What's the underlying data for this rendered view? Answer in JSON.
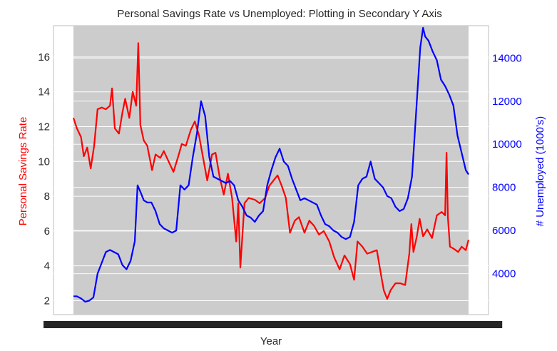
{
  "chart_data": {
    "type": "line",
    "title": "Personal Savings Rate vs Unemployed: Plotting in Secondary Y Axis",
    "xlabel": "Year",
    "xrange": [
      "1967-07",
      "2015-04"
    ],
    "x_tick_labels_unreadable": true,
    "ylabel": "Personal Savings Rate",
    "ylabel_right": "# Unemployed (1000's)",
    "ylim": [
      1.2,
      17.8
    ],
    "ylim_right": [
      2100,
      15500
    ],
    "yticks": [
      2,
      4,
      6,
      8,
      10,
      12,
      14,
      16
    ],
    "yticks_right": [
      4000,
      6000,
      8000,
      10000,
      12000,
      14000
    ],
    "grid": true,
    "background": "#cccccc",
    "series": [
      {
        "name": "Personal Savings Rate",
        "axis": "left",
        "color": "#ff0000",
        "points": [
          [
            "1967-07",
            12.5
          ],
          [
            "1967-12",
            11.9
          ],
          [
            "1968-06",
            11.4
          ],
          [
            "1968-10",
            10.3
          ],
          [
            "1969-03",
            10.8
          ],
          [
            "1969-08",
            9.6
          ],
          [
            "1970-01",
            10.9
          ],
          [
            "1970-06",
            13.0
          ],
          [
            "1970-12",
            13.1
          ],
          [
            "1971-06",
            13.0
          ],
          [
            "1971-12",
            13.2
          ],
          [
            "1972-03",
            14.2
          ],
          [
            "1972-07",
            11.9
          ],
          [
            "1973-01",
            11.6
          ],
          [
            "1973-06",
            12.8
          ],
          [
            "1973-10",
            13.6
          ],
          [
            "1974-04",
            12.5
          ],
          [
            "1974-09",
            14.0
          ],
          [
            "1975-02",
            13.2
          ],
          [
            "1975-05",
            16.8
          ],
          [
            "1975-08",
            12.1
          ],
          [
            "1976-01",
            11.2
          ],
          [
            "1976-06",
            10.9
          ],
          [
            "1977-01",
            9.5
          ],
          [
            "1977-06",
            10.4
          ],
          [
            "1978-01",
            10.2
          ],
          [
            "1978-06",
            10.6
          ],
          [
            "1979-01",
            10.0
          ],
          [
            "1979-08",
            9.4
          ],
          [
            "1980-03",
            10.3
          ],
          [
            "1980-08",
            11.0
          ],
          [
            "1981-02",
            10.9
          ],
          [
            "1981-09",
            11.8
          ],
          [
            "1982-03",
            12.3
          ],
          [
            "1982-09",
            11.5
          ],
          [
            "1983-03",
            10.2
          ],
          [
            "1983-09",
            8.9
          ],
          [
            "1984-04",
            10.4
          ],
          [
            "1984-09",
            10.5
          ],
          [
            "1985-03",
            9.1
          ],
          [
            "1985-09",
            8.1
          ],
          [
            "1986-03",
            9.3
          ],
          [
            "1986-09",
            7.9
          ],
          [
            "1987-03",
            5.4
          ],
          [
            "1987-06",
            7.6
          ],
          [
            "1987-09",
            3.9
          ],
          [
            "1988-03",
            7.6
          ],
          [
            "1988-09",
            7.9
          ],
          [
            "1989-06",
            7.8
          ],
          [
            "1990-01",
            7.6
          ],
          [
            "1990-09",
            7.9
          ],
          [
            "1991-03",
            8.6
          ],
          [
            "1991-09",
            8.9
          ],
          [
            "1992-03",
            9.2
          ],
          [
            "1992-09",
            8.6
          ],
          [
            "1993-03",
            7.9
          ],
          [
            "1993-09",
            5.9
          ],
          [
            "1994-04",
            6.6
          ],
          [
            "1994-10",
            6.8
          ],
          [
            "1995-06",
            5.9
          ],
          [
            "1996-01",
            6.6
          ],
          [
            "1996-08",
            6.3
          ],
          [
            "1997-03",
            5.8
          ],
          [
            "1997-10",
            6.0
          ],
          [
            "1998-06",
            5.4
          ],
          [
            "1999-01",
            4.5
          ],
          [
            "1999-09",
            3.8
          ],
          [
            "2000-04",
            4.6
          ],
          [
            "2000-12",
            4.1
          ],
          [
            "2001-06",
            3.2
          ],
          [
            "2001-11",
            5.4
          ],
          [
            "2002-06",
            5.1
          ],
          [
            "2003-01",
            4.7
          ],
          [
            "2003-08",
            4.8
          ],
          [
            "2004-03",
            4.9
          ],
          [
            "2004-09",
            3.5
          ],
          [
            "2005-01",
            2.6
          ],
          [
            "2005-06",
            2.1
          ],
          [
            "2005-11",
            2.6
          ],
          [
            "2006-06",
            3.0
          ],
          [
            "2007-01",
            3.0
          ],
          [
            "2007-08",
            2.9
          ],
          [
            "2008-02",
            4.7
          ],
          [
            "2008-05",
            6.4
          ],
          [
            "2008-08",
            4.8
          ],
          [
            "2009-01",
            5.7
          ],
          [
            "2009-05",
            6.7
          ],
          [
            "2009-10",
            5.7
          ],
          [
            "2010-04",
            6.1
          ],
          [
            "2010-11",
            5.6
          ],
          [
            "2011-06",
            6.9
          ],
          [
            "2012-01",
            7.1
          ],
          [
            "2012-06",
            6.9
          ],
          [
            "2012-08",
            10.5
          ],
          [
            "2012-10",
            6.8
          ],
          [
            "2013-01",
            5.1
          ],
          [
            "2013-06",
            5.0
          ],
          [
            "2014-01",
            4.8
          ],
          [
            "2014-06",
            5.1
          ],
          [
            "2014-12",
            4.9
          ],
          [
            "2015-04",
            5.5
          ]
        ]
      },
      {
        "name": "# Unemployed (1000's)",
        "axis": "right",
        "color": "#0000ff",
        "points": [
          [
            "1967-07",
            2950
          ],
          [
            "1967-12",
            2950
          ],
          [
            "1968-06",
            2850
          ],
          [
            "1968-12",
            2700
          ],
          [
            "1969-06",
            2750
          ],
          [
            "1969-12",
            2900
          ],
          [
            "1970-06",
            4000
          ],
          [
            "1970-12",
            4500
          ],
          [
            "1971-06",
            5000
          ],
          [
            "1971-12",
            5100
          ],
          [
            "1972-06",
            5000
          ],
          [
            "1972-12",
            4900
          ],
          [
            "1973-06",
            4400
          ],
          [
            "1973-12",
            4200
          ],
          [
            "1974-06",
            4600
          ],
          [
            "1974-12",
            5500
          ],
          [
            "1975-04",
            8100
          ],
          [
            "1975-08",
            7800
          ],
          [
            "1976-01",
            7400
          ],
          [
            "1976-06",
            7300
          ],
          [
            "1976-12",
            7300
          ],
          [
            "1977-06",
            6900
          ],
          [
            "1977-12",
            6300
          ],
          [
            "1978-06",
            6100
          ],
          [
            "1978-12",
            6000
          ],
          [
            "1979-06",
            5900
          ],
          [
            "1979-12",
            6000
          ],
          [
            "1980-06",
            8100
          ],
          [
            "1980-12",
            7900
          ],
          [
            "1981-06",
            8100
          ],
          [
            "1981-12",
            9400
          ],
          [
            "1982-06",
            10500
          ],
          [
            "1982-12",
            12000
          ],
          [
            "1983-06",
            11300
          ],
          [
            "1983-12",
            9400
          ],
          [
            "1984-06",
            8500
          ],
          [
            "1984-12",
            8400
          ],
          [
            "1985-06",
            8300
          ],
          [
            "1985-12",
            8200
          ],
          [
            "1986-06",
            8300
          ],
          [
            "1986-12",
            8100
          ],
          [
            "1987-06",
            7400
          ],
          [
            "1987-12",
            7100
          ],
          [
            "1988-06",
            6700
          ],
          [
            "1988-12",
            6600
          ],
          [
            "1989-06",
            6400
          ],
          [
            "1989-12",
            6700
          ],
          [
            "1990-06",
            6900
          ],
          [
            "1990-12",
            8100
          ],
          [
            "1991-06",
            8800
          ],
          [
            "1991-12",
            9400
          ],
          [
            "1992-06",
            9800
          ],
          [
            "1992-12",
            9200
          ],
          [
            "1993-06",
            9000
          ],
          [
            "1993-12",
            8400
          ],
          [
            "1994-06",
            7900
          ],
          [
            "1994-12",
            7400
          ],
          [
            "1995-06",
            7500
          ],
          [
            "1995-12",
            7400
          ],
          [
            "1996-06",
            7300
          ],
          [
            "1996-12",
            7200
          ],
          [
            "1997-06",
            6700
          ],
          [
            "1997-12",
            6300
          ],
          [
            "1998-06",
            6200
          ],
          [
            "1998-12",
            6000
          ],
          [
            "1999-06",
            5900
          ],
          [
            "1999-12",
            5700
          ],
          [
            "2000-06",
            5600
          ],
          [
            "2000-12",
            5700
          ],
          [
            "2001-06",
            6400
          ],
          [
            "2001-12",
            8100
          ],
          [
            "2002-06",
            8400
          ],
          [
            "2002-12",
            8500
          ],
          [
            "2003-06",
            9200
          ],
          [
            "2003-12",
            8400
          ],
          [
            "2004-06",
            8200
          ],
          [
            "2004-12",
            8000
          ],
          [
            "2005-06",
            7600
          ],
          [
            "2005-12",
            7500
          ],
          [
            "2006-06",
            7100
          ],
          [
            "2006-12",
            6900
          ],
          [
            "2007-06",
            7000
          ],
          [
            "2007-12",
            7500
          ],
          [
            "2008-06",
            8500
          ],
          [
            "2008-12",
            11500
          ],
          [
            "2009-06",
            14500
          ],
          [
            "2009-10",
            15400
          ],
          [
            "2010-01",
            15000
          ],
          [
            "2010-06",
            14800
          ],
          [
            "2010-12",
            14300
          ],
          [
            "2011-06",
            13900
          ],
          [
            "2011-12",
            13000
          ],
          [
            "2012-06",
            12700
          ],
          [
            "2012-12",
            12300
          ],
          [
            "2013-06",
            11800
          ],
          [
            "2013-12",
            10400
          ],
          [
            "2014-06",
            9600
          ],
          [
            "2014-12",
            8800
          ],
          [
            "2015-04",
            8600
          ]
        ]
      }
    ]
  }
}
